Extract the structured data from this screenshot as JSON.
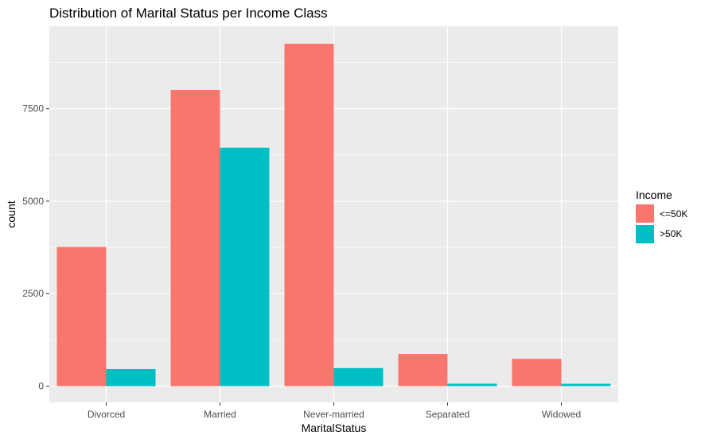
{
  "chart_data": {
    "type": "bar",
    "title": "Distribution of Marital Status per Income Class",
    "xlabel": "MaritalStatus",
    "ylabel": "count",
    "categories": [
      "Divorced",
      "Married",
      "Never-married",
      "Separated",
      "Widowed"
    ],
    "series": [
      {
        "name": "<=50K",
        "color": "#F8766D",
        "values": [
          3762,
          8010,
          9256,
          870,
          738
        ]
      },
      {
        "name": ">50K",
        "color": "#00BFC4",
        "values": [
          463,
          6446,
          488,
          66,
          63
        ]
      }
    ],
    "ylim": [
      0,
      9730
    ],
    "yticks": [
      0,
      2500,
      5000,
      7500
    ],
    "ytick_labels": [
      "0",
      "2500",
      "5000",
      "7500"
    ],
    "grid": true,
    "legend": {
      "title": "Income",
      "position": "right"
    },
    "panel_background": "#EBEBEB"
  }
}
